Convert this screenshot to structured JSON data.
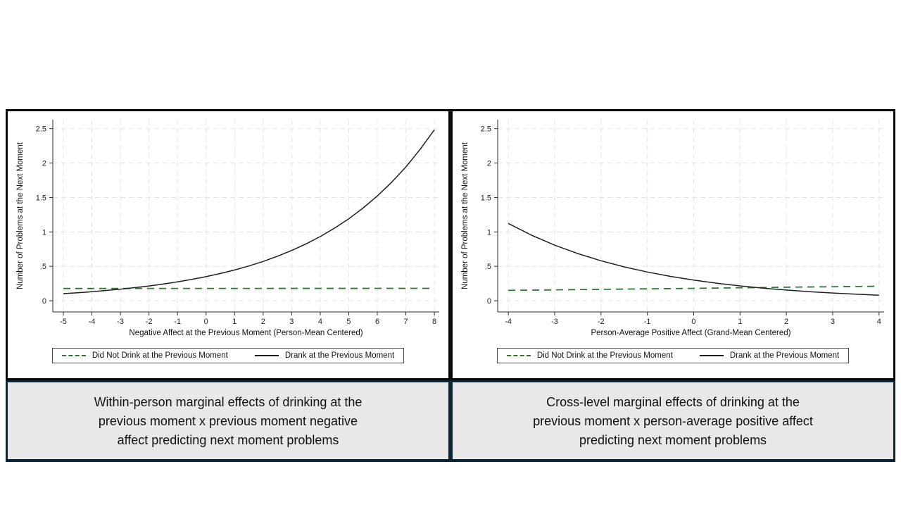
{
  "figure": {
    "background": "#ffffff",
    "chart_border_color": "#0a0a0a",
    "caption_border_color": "#0d2433",
    "caption_bg": "#e8e8e8",
    "grid_color": "#e3e3e3",
    "axis_color": "#2b2b2b",
    "green_accent": "#2a7a2e",
    "black_line": "#1f1f1f"
  },
  "chart_data": [
    {
      "type": "line",
      "title": "Within-person marginal effects of drinking at the previous moment x previous moment negative affect predicting next moment problems",
      "caption": "Within-person marginal effects of drinking at the\nprevious moment x previous moment negative\naffect predicting next moment problems",
      "xlabel": "Negative Affect at the Previous Moment (Person-Mean Centered)",
      "ylabel": "Number of Problems at the Next Moment",
      "xlim": [
        -5.37,
        8.17
      ],
      "ylim": [
        -0.163,
        2.63
      ],
      "x_ticks": [
        -5,
        -4,
        -3,
        -2,
        -1,
        0,
        1,
        2,
        3,
        4,
        5,
        6,
        7,
        8
      ],
      "y_ticks": [
        {
          "v": 0,
          "label": "0"
        },
        {
          "v": 0.5,
          "label": ".5"
        },
        {
          "v": 1,
          "label": "1"
        },
        {
          "v": 1.5,
          "label": "1.5"
        },
        {
          "v": 2,
          "label": "2"
        },
        {
          "v": 2.5,
          "label": "2.5"
        }
      ],
      "grid": true,
      "legend_position": "bottom",
      "series": [
        {
          "name": "Did Not Drink at the Previous Moment",
          "style": "dashed",
          "color": "#2a7a2e",
          "points": [
            [
              -5,
              0.178
            ],
            [
              8,
              0.18
            ]
          ]
        },
        {
          "name": "Drank at the Previous Moment",
          "style": "solid",
          "color": "#1f1f1f",
          "points": [
            [
              -5,
              0.103
            ],
            [
              -4.5,
              0.116
            ],
            [
              -4,
              0.131
            ],
            [
              -3.5,
              0.149
            ],
            [
              -3,
              0.168
            ],
            [
              -2.5,
              0.19
            ],
            [
              -2,
              0.215
            ],
            [
              -1.5,
              0.242
            ],
            [
              -1,
              0.274
            ],
            [
              -0.5,
              0.31
            ],
            [
              0,
              0.35
            ],
            [
              0.5,
              0.396
            ],
            [
              1,
              0.447
            ],
            [
              1.5,
              0.505
            ],
            [
              2,
              0.571
            ],
            [
              2.5,
              0.646
            ],
            [
              3,
              0.73
            ],
            [
              3.5,
              0.825
            ],
            [
              4,
              0.932
            ],
            [
              4.5,
              1.054
            ],
            [
              5,
              1.191
            ],
            [
              5.5,
              1.346
            ],
            [
              6,
              1.522
            ],
            [
              6.5,
              1.72
            ],
            [
              7,
              1.944
            ],
            [
              7.5,
              2.198
            ],
            [
              8,
              2.484
            ]
          ]
        }
      ]
    },
    {
      "type": "line",
      "title": "Cross-level marginal effects of drinking at the previous moment x person-average positive affect predicting next moment problems",
      "caption": "Cross-level marginal effects of drinking at the\nprevious moment x person-average positive affect\npredicting next moment problems",
      "xlabel": "Person-Average Positive Affect (Grand-Mean Centered)",
      "ylabel": "Number of Problems at the Next Moment",
      "xlim": [
        -4.23,
        4.11
      ],
      "ylim": [
        -0.163,
        2.63
      ],
      "x_ticks": [
        -4,
        -3,
        -2,
        -1,
        0,
        1,
        2,
        3,
        4
      ],
      "y_ticks": [
        {
          "v": 0,
          "label": "0"
        },
        {
          "v": 0.5,
          "label": ".5"
        },
        {
          "v": 1,
          "label": "1"
        },
        {
          "v": 1.5,
          "label": "1.5"
        },
        {
          "v": 2,
          "label": "2"
        },
        {
          "v": 2.5,
          "label": "2.5"
        }
      ],
      "grid": true,
      "legend_position": "bottom",
      "series": [
        {
          "name": "Did Not Drink at the Previous Moment",
          "style": "dashed",
          "color": "#2a7a2e",
          "points": [
            [
              -4,
              0.15
            ],
            [
              -2,
              0.165
            ],
            [
              0,
              0.18
            ],
            [
              2,
              0.196
            ],
            [
              4,
              0.21
            ]
          ]
        },
        {
          "name": "Drank at the Previous Moment",
          "style": "solid",
          "color": "#1f1f1f",
          "points": [
            [
              -4,
              1.123
            ],
            [
              -3.5,
              0.952
            ],
            [
              -3,
              0.807
            ],
            [
              -2.5,
              0.685
            ],
            [
              -2,
              0.581
            ],
            [
              -1.5,
              0.492
            ],
            [
              -1,
              0.417
            ],
            [
              -0.5,
              0.354
            ],
            [
              0,
              0.3
            ],
            [
              0.5,
              0.254
            ],
            [
              1,
              0.216
            ],
            [
              1.5,
              0.183
            ],
            [
              2,
              0.155
            ],
            [
              2.5,
              0.132
            ],
            [
              3,
              0.112
            ],
            [
              3.5,
              0.095
            ],
            [
              4,
              0.08
            ]
          ]
        }
      ]
    }
  ]
}
